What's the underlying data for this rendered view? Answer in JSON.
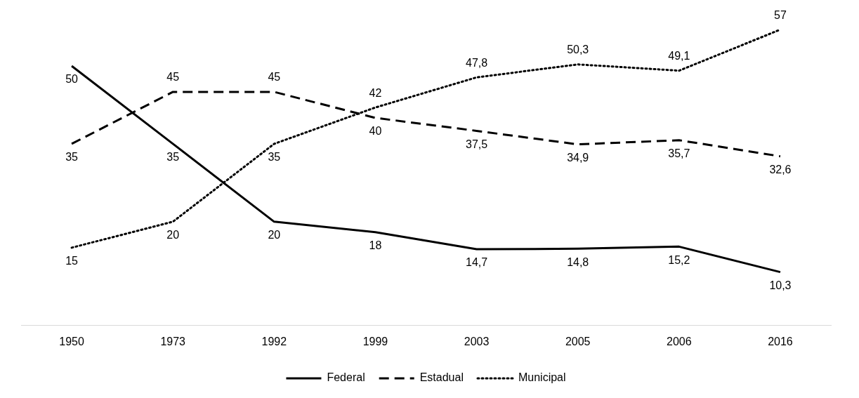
{
  "chart_data": {
    "type": "line",
    "categories": [
      "1950",
      "1973",
      "1992",
      "1999",
      "2003",
      "2005",
      "2006",
      "2016"
    ],
    "series": [
      {
        "name": "Federal",
        "color": "#000000",
        "line_style": "solid",
        "values": [
          50,
          35,
          20,
          18,
          14.7,
          14.8,
          15.2,
          10.3
        ],
        "value_labels": [
          "50",
          "35",
          "20",
          "18",
          "14,7",
          "14,8",
          "15,2",
          "10,3"
        ]
      },
      {
        "name": "Estadual",
        "color": "#000000",
        "line_style": "dashed",
        "values": [
          35,
          45,
          45,
          40,
          37.5,
          34.9,
          35.7,
          32.6
        ],
        "value_labels": [
          "35",
          "45",
          "45",
          "40",
          "37,5",
          "34,9",
          "35,7",
          "32,6"
        ]
      },
      {
        "name": "Municipal",
        "color": "#000000",
        "line_style": "dotted",
        "values": [
          15,
          20,
          35,
          42,
          47.8,
          50.3,
          49.1,
          57
        ],
        "value_labels": [
          "15",
          "20",
          "35",
          "42",
          "47,8",
          "50,3",
          "49,1",
          "57"
        ]
      }
    ],
    "grid": false,
    "legend": "bottom",
    "marker": "none"
  }
}
